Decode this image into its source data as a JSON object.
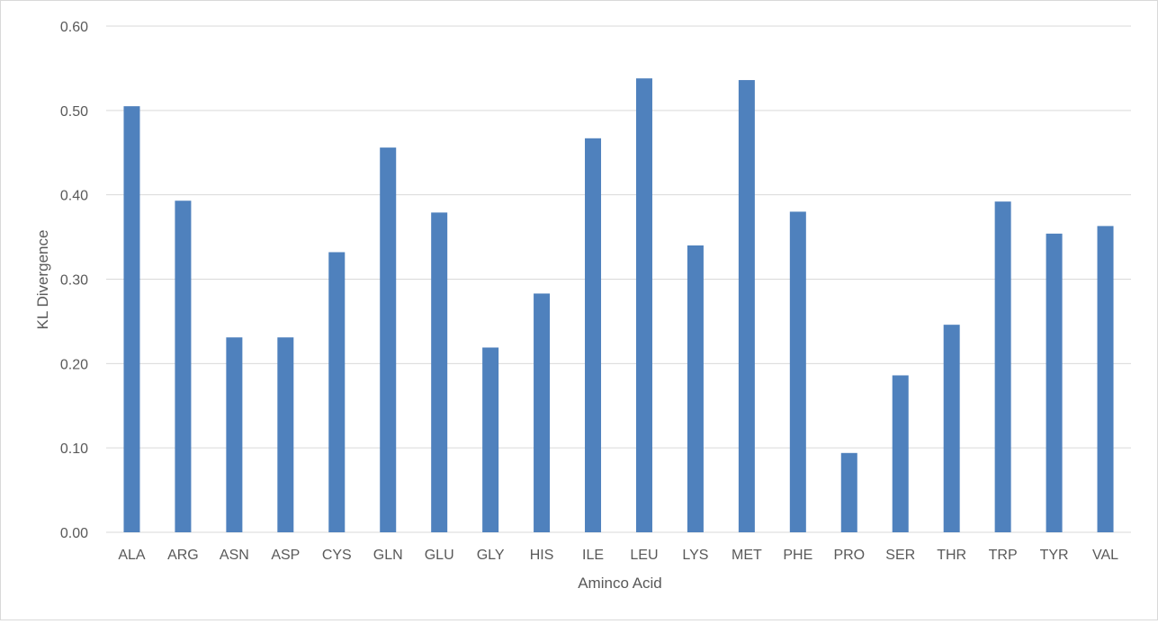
{
  "chart_data": {
    "type": "bar",
    "title": "",
    "xlabel": "Aminco Acid",
    "ylabel": "KL Divergence",
    "categories": [
      "ALA",
      "ARG",
      "ASN",
      "ASP",
      "CYS",
      "GLN",
      "GLU",
      "GLY",
      "HIS",
      "ILE",
      "LEU",
      "LYS",
      "MET",
      "PHE",
      "PRO",
      "SER",
      "THR",
      "TRP",
      "TYR",
      "VAL"
    ],
    "values": [
      0.505,
      0.393,
      0.231,
      0.231,
      0.332,
      0.456,
      0.379,
      0.219,
      0.283,
      0.467,
      0.538,
      0.34,
      0.536,
      0.38,
      0.094,
      0.186,
      0.246,
      0.392,
      0.354,
      0.363
    ],
    "ylim": [
      0,
      0.6
    ],
    "yticks": [
      "0.00",
      "0.10",
      "0.20",
      "0.30",
      "0.40",
      "0.50",
      "0.60"
    ],
    "grid": true,
    "legend": "none",
    "colors": {
      "bar": "#4f81bd",
      "grid": "#d9d9d9",
      "text": "#595959"
    }
  }
}
